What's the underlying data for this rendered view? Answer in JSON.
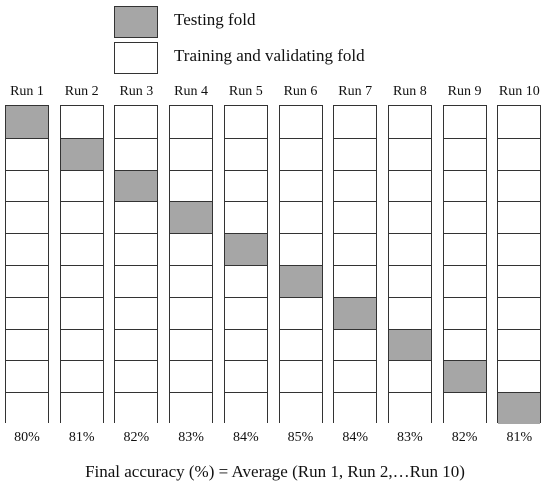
{
  "legend": [
    {
      "label": "Testing fold",
      "color": "#a6a6a6"
    },
    {
      "label": "Training and validating fold",
      "color": "#ffffff"
    }
  ],
  "runs": [
    {
      "label": "Run 1",
      "accuracy": "80%",
      "test_fold": 1
    },
    {
      "label": "Run 2",
      "accuracy": "81%",
      "test_fold": 2
    },
    {
      "label": "Run 3",
      "accuracy": "82%",
      "test_fold": 3
    },
    {
      "label": "Run 4",
      "accuracy": "83%",
      "test_fold": 4
    },
    {
      "label": "Run 5",
      "accuracy": "84%",
      "test_fold": 5
    },
    {
      "label": "Run 6",
      "accuracy": "85%",
      "test_fold": 6
    },
    {
      "label": "Run 7",
      "accuracy": "84%",
      "test_fold": 7
    },
    {
      "label": "Run 8",
      "accuracy": "83%",
      "test_fold": 8
    },
    {
      "label": "Run 9",
      "accuracy": "82%",
      "test_fold": 9
    },
    {
      "label": "Run 10",
      "accuracy": "81%",
      "test_fold": 10
    }
  ],
  "folds_per_run": 10,
  "footer": "Final accuracy (%) = Average (Run 1, Run 2,…Run 10)"
}
